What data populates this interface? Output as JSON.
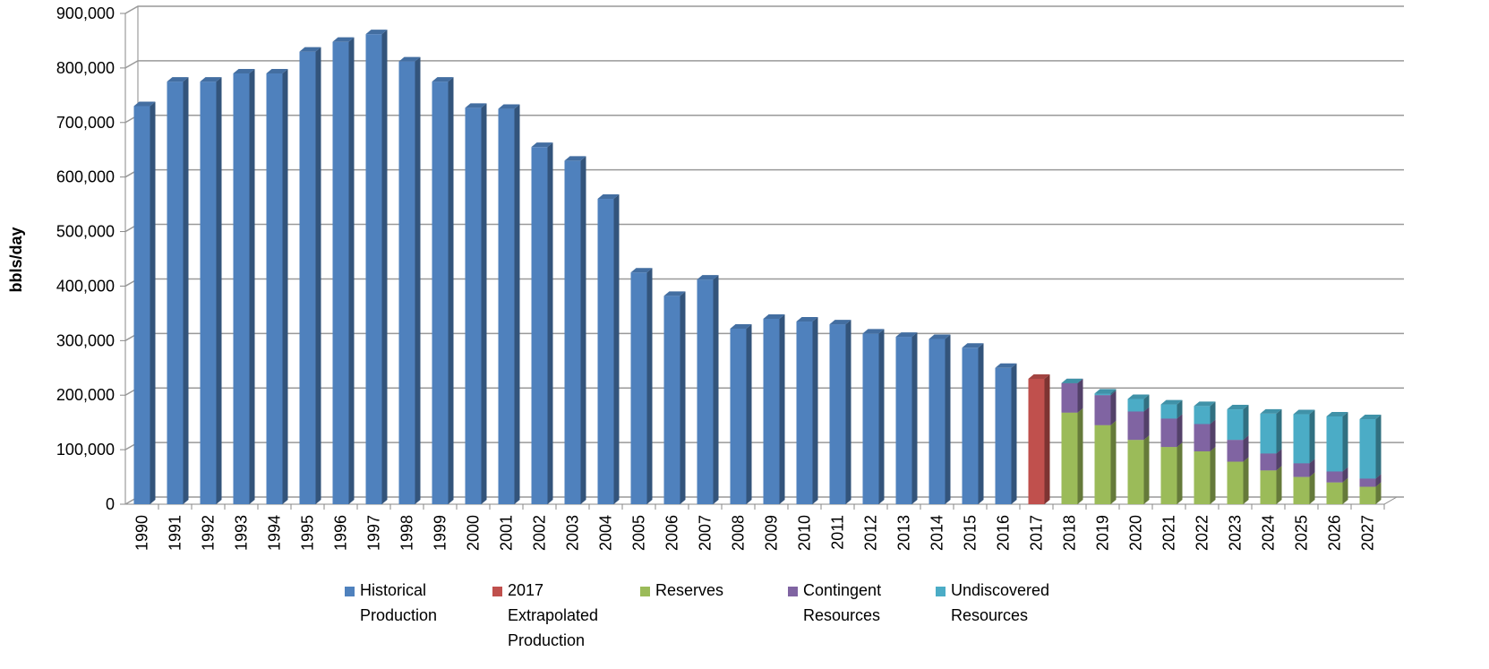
{
  "chart_data": {
    "type": "stacked_bar",
    "y_label": "bbls/day",
    "categories": [
      "1990",
      "1991",
      "1992",
      "1993",
      "1994",
      "1995",
      "1996",
      "1997",
      "1998",
      "1999",
      "2000",
      "2001",
      "2002",
      "2003",
      "2004",
      "2005",
      "2006",
      "2007",
      "2008",
      "2009",
      "2010",
      "2011",
      "2012",
      "2013",
      "2014",
      "2015",
      "2016",
      "2017",
      "2018",
      "2019",
      "2020",
      "2021",
      "2022",
      "2023",
      "2024",
      "2025",
      "2026",
      "2027"
    ],
    "series": [
      {
        "name": "Historical Production",
        "color": "#4f81bd",
        "values": [
          730000,
          775000,
          775000,
          790000,
          790000,
          830000,
          848000,
          862000,
          812000,
          775000,
          727000,
          725000,
          655000,
          630000,
          560000,
          425000,
          382000,
          412000,
          322000,
          340000,
          335000,
          330000,
          313000,
          307000,
          303000,
          287000,
          250000,
          null,
          null,
          null,
          null,
          null,
          null,
          null,
          null,
          null,
          null,
          null
        ]
      },
      {
        "name": "2017 Extrapolated Production",
        "color": "#c0504d",
        "values": [
          null,
          null,
          null,
          null,
          null,
          null,
          null,
          null,
          null,
          null,
          null,
          null,
          null,
          null,
          null,
          null,
          null,
          null,
          null,
          null,
          null,
          null,
          null,
          null,
          null,
          null,
          null,
          230000,
          null,
          null,
          null,
          null,
          null,
          null,
          null,
          null,
          null,
          null
        ]
      },
      {
        "name": "Reserves",
        "color": "#9bbb59",
        "values": [
          null,
          null,
          null,
          null,
          null,
          null,
          null,
          null,
          null,
          null,
          null,
          null,
          null,
          null,
          null,
          null,
          null,
          null,
          null,
          null,
          null,
          null,
          null,
          null,
          null,
          null,
          null,
          null,
          168000,
          145000,
          118000,
          105000,
          97000,
          78000,
          62000,
          50000,
          40000,
          32000
        ]
      },
      {
        "name": "Contingent Resources",
        "color": "#8064a2",
        "values": [
          null,
          null,
          null,
          null,
          null,
          null,
          null,
          null,
          null,
          null,
          null,
          null,
          null,
          null,
          null,
          null,
          null,
          null,
          null,
          null,
          null,
          null,
          null,
          null,
          null,
          null,
          null,
          null,
          54000,
          55000,
          52000,
          52000,
          50000,
          40000,
          31000,
          25000,
          20000,
          15000
        ]
      },
      {
        "name": "Undiscovered Resources",
        "color": "#4bacc6",
        "values": [
          null,
          null,
          null,
          null,
          null,
          null,
          null,
          null,
          null,
          null,
          null,
          null,
          null,
          null,
          null,
          null,
          null,
          null,
          null,
          null,
          null,
          null,
          null,
          null,
          null,
          null,
          null,
          null,
          0,
          3000,
          23000,
          26000,
          33000,
          56000,
          73000,
          90000,
          101000,
          109000
        ]
      }
    ],
    "ylim": [
      0,
      900000
    ],
    "yticks": [
      0,
      {
        "value": 100000,
        "label": "100,000"
      },
      {
        "value": 200000,
        "label": "200,000"
      },
      {
        "value": 300000,
        "label": "300,000"
      },
      {
        "value": 400000,
        "label": "400,000"
      },
      {
        "value": 500000,
        "label": "500,000"
      },
      {
        "value": 600000,
        "label": "600,000"
      },
      {
        "value": 700000,
        "label": "700,000"
      },
      {
        "value": 800000,
        "label": "800,000"
      },
      {
        "value": 900000,
        "label": "900,000"
      }
    ],
    "grid": true,
    "legend": "bottom"
  }
}
